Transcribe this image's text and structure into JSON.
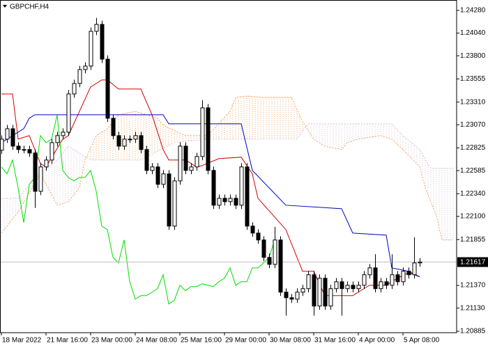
{
  "chart_data": {
    "type": "candlestick",
    "title": "GBPCHF,H4",
    "categories": [
      "18 Mar 2022",
      null,
      null,
      null,
      null,
      null,
      null,
      null,
      "21 Mar 16:00",
      null,
      null,
      null,
      null,
      null,
      null,
      null,
      "23 Mar 00:00",
      null,
      null,
      null,
      null,
      null,
      null,
      null,
      "24 Mar 08:00",
      null,
      null,
      null,
      null,
      null,
      null,
      null,
      "25 Mar 16:00",
      null,
      null,
      null,
      null,
      null,
      null,
      null,
      "29 Mar 00:00",
      null,
      null,
      null,
      null,
      null,
      null,
      null,
      "30 Mar 08:00",
      null,
      null,
      null,
      null,
      null,
      null,
      null,
      "31 Mar 16:00",
      null,
      null,
      null,
      null,
      null,
      null,
      null,
      "4 Apr 00:00",
      null,
      null,
      null,
      null,
      null,
      null,
      null,
      "5 Apr 08:00",
      null,
      null,
      null
    ],
    "open": [
      1.228,
      1.22918,
      1.23028,
      1.22844,
      1.22808,
      1.22808,
      1.22771,
      1.22366,
      1.22624,
      1.22697,
      1.22881,
      1.22955,
      1.22992,
      1.23396,
      1.23507,
      1.23654,
      1.23691,
      1.24059,
      1.24132,
      1.23764,
      1.23139,
      1.22955,
      1.22844,
      1.22918,
      1.22918,
      1.22955,
      1.22808,
      1.22587,
      1.22624,
      1.2244,
      1.2255,
      1.21998,
      1.22476,
      1.22844,
      1.22587,
      1.22624,
      1.22734,
      1.23249,
      1.22587,
      1.22219,
      1.22292,
      1.22256,
      1.22292,
      1.22219,
      1.22624,
      1.21998,
      1.21924,
      1.21851,
      1.21667,
      1.21593,
      1.21851,
      1.21299,
      1.2124,
      1.21225,
      1.21299,
      1.21336,
      1.21483,
      1.21152,
      1.21446,
      1.21152,
      1.21336,
      1.21409,
      1.21336,
      1.21372,
      1.21336,
      1.21372,
      1.21483,
      1.21556,
      1.21336,
      1.21409,
      1.21372,
      1.21483,
      1.21409,
      1.2152,
      1.21483,
      1.21608
    ],
    "high": [
      1.22958,
      1.23068,
      1.23068,
      1.22884,
      1.22848,
      1.22848,
      1.22811,
      1.22664,
      1.22737,
      1.22921,
      1.22995,
      1.23032,
      1.23436,
      1.23547,
      1.23694,
      1.23731,
      1.24099,
      1.242,
      1.24172,
      1.23804,
      1.23179,
      1.22995,
      1.22958,
      1.22958,
      1.22995,
      1.22995,
      1.22848,
      1.22664,
      1.22664,
      1.2259,
      1.2259,
      1.22516,
      1.22884,
      1.22884,
      1.22664,
      1.22774,
      1.2333,
      1.23289,
      1.22627,
      1.22332,
      1.22332,
      1.22332,
      1.22332,
      1.22664,
      1.22664,
      1.22038,
      1.21964,
      1.21891,
      1.21707,
      1.2199,
      1.21891,
      1.21339,
      1.2128,
      1.21339,
      1.21376,
      1.21523,
      1.21523,
      1.21486,
      1.21486,
      1.21376,
      1.21449,
      1.21449,
      1.21412,
      1.21412,
      1.21412,
      1.21523,
      1.21596,
      1.217,
      1.21449,
      1.21449,
      1.217,
      1.21523,
      1.2156,
      1.2156,
      1.2188,
      1.2166
    ],
    "low": [
      1.2276,
      1.22878,
      1.22804,
      1.22768,
      1.22768,
      1.22731,
      1.2219,
      1.22326,
      1.22584,
      1.22657,
      1.22841,
      1.22915,
      1.22952,
      1.23356,
      1.23467,
      1.23614,
      1.23651,
      1.24019,
      1.23724,
      1.23099,
      1.22915,
      1.22804,
      1.22804,
      1.22878,
      1.22878,
      1.22768,
      1.22547,
      1.22547,
      1.224,
      1.224,
      1.21958,
      1.21958,
      1.22436,
      1.22547,
      1.22547,
      1.22584,
      1.22694,
      1.22547,
      1.22179,
      1.22179,
      1.22216,
      1.22216,
      1.22179,
      1.22179,
      1.21958,
      1.21884,
      1.21811,
      1.21627,
      1.21553,
      1.21553,
      1.21259,
      1.2105,
      1.21185,
      1.21185,
      1.21259,
      1.21296,
      1.2105,
      1.21112,
      1.21112,
      1.21112,
      1.21296,
      1.2105,
      1.21296,
      1.21296,
      1.21296,
      1.21332,
      1.21443,
      1.21296,
      1.21296,
      1.21332,
      1.21332,
      1.21369,
      1.21369,
      1.21443,
      1.21443,
      1.21568
    ],
    "close": [
      1.22918,
      1.23028,
      1.22844,
      1.22808,
      1.22808,
      1.22771,
      1.22366,
      1.22624,
      1.22697,
      1.22881,
      1.22955,
      1.22992,
      1.23396,
      1.23507,
      1.23654,
      1.23691,
      1.24059,
      1.24132,
      1.23764,
      1.23139,
      1.22955,
      1.22844,
      1.22918,
      1.22918,
      1.22955,
      1.22808,
      1.22587,
      1.22624,
      1.2244,
      1.2255,
      1.21998,
      1.22476,
      1.22844,
      1.22587,
      1.22624,
      1.22734,
      1.23249,
      1.22587,
      1.22219,
      1.22292,
      1.22256,
      1.22292,
      1.22219,
      1.22624,
      1.21998,
      1.21924,
      1.21851,
      1.21667,
      1.21593,
      1.21851,
      1.21299,
      1.2124,
      1.21225,
      1.21299,
      1.21336,
      1.21483,
      1.21152,
      1.21446,
      1.21152,
      1.21336,
      1.21409,
      1.21336,
      1.21372,
      1.21336,
      1.21372,
      1.21483,
      1.21556,
      1.21336,
      1.21409,
      1.21372,
      1.21483,
      1.21409,
      1.2152,
      1.21483,
      1.21608,
      1.21617
    ],
    "bull_color": "#ffffff",
    "bear_color": "#000000",
    "wick_color": "#000000",
    "lines": [
      {
        "color": "#d00000",
        "x": [
          0,
          2,
          3,
          5,
          7,
          8,
          11,
          12,
          14,
          16,
          18,
          19,
          21,
          25,
          27,
          29,
          30,
          33,
          35,
          36,
          39,
          43,
          45,
          46,
          51,
          53,
          54,
          56,
          58,
          63,
          64,
          66,
          69,
          71,
          73,
          75
        ],
        "values": [
          1.23396,
          1.23396,
          1.22918,
          1.22955,
          1.2266,
          1.22624,
          1.22918,
          1.22955,
          1.23212,
          1.2347,
          1.23544,
          1.23544,
          1.23448,
          1.23448,
          1.23176,
          1.22808,
          1.22697,
          1.22697,
          1.22624,
          1.22638,
          1.22712,
          1.22727,
          1.2255,
          1.22292,
          1.21961,
          1.21667,
          1.2152,
          1.2152,
          1.21262,
          1.21262,
          1.21299,
          1.21372,
          1.21372,
          1.21446,
          1.21505,
          1.21461
        ]
      },
      {
        "color": "#0000c0",
        "x": [
          0,
          4,
          5,
          6,
          29,
          30,
          43,
          45,
          51,
          61,
          63,
          69,
          70,
          73,
          75
        ],
        "values": [
          1.22881,
          1.23028,
          1.23139,
          1.23176,
          1.23176,
          1.2308,
          1.2308,
          1.22587,
          1.22219,
          1.22182,
          1.21924,
          1.21902,
          1.21556,
          1.2152,
          1.21461
        ]
      },
      {
        "color": "#00dd00",
        "values": [
          1.22624,
          1.2255,
          1.22697,
          1.22403,
          1.22035,
          1.2244,
          1.22513,
          1.22955,
          1.22881,
          1.22918,
          1.23176,
          1.22587,
          1.22513,
          1.22476,
          1.22513,
          1.22513,
          1.22587,
          1.22366,
          1.21998,
          1.21961,
          1.21667,
          1.21608,
          1.21851,
          1.21409,
          1.21225,
          1.21262,
          1.21262,
          1.21299,
          1.21336,
          1.21483,
          1.21174,
          1.21211,
          1.21372,
          1.21314,
          1.21358,
          1.21358,
          1.21387,
          1.21372,
          1.21358,
          1.21409,
          1.21446,
          1.21556,
          1.21372,
          1.21409,
          1.21409,
          1.21556,
          1.21556,
          1.21608,
          1.21667,
          1.21851
        ]
      }
    ],
    "cloud": {
      "up_color": "#f4a460",
      "down_color": "#d8bfd8",
      "span_a": {
        "color": "#f4a460",
        "x": [
          0,
          1,
          3,
          7,
          10,
          12,
          14,
          15,
          17,
          19,
          21,
          24,
          28,
          29,
          33,
          37,
          41,
          42,
          44,
          47,
          52,
          54,
          56,
          58,
          61,
          62,
          64,
          68,
          70,
          72,
          75,
          76,
          78,
          79,
          81
        ],
        "values": [
          1.21924,
          1.21998,
          1.22145,
          1.2255,
          1.22219,
          1.22256,
          1.22403,
          1.22697,
          1.22955,
          1.23028,
          1.23176,
          1.23212,
          1.23139,
          1.23065,
          1.22955,
          1.22955,
          1.23212,
          1.2336,
          1.23374,
          1.2336,
          1.2336,
          1.23102,
          1.22918,
          1.22844,
          1.22808,
          1.22881,
          1.22918,
          1.22955,
          1.22918,
          1.22808,
          1.22624,
          1.22403,
          1.22108,
          1.21851,
          1.21851
        ]
      },
      "span_b": {
        "color": "#d8bfd8",
        "x": [
          0,
          3,
          6,
          10,
          12,
          16,
          25,
          31,
          37,
          42,
          53,
          55,
          70,
          72,
          75,
          77,
          81
        ],
        "values": [
          1.22292,
          1.22292,
          1.22513,
          1.22697,
          1.22844,
          1.22697,
          1.22697,
          1.22881,
          1.22918,
          1.22918,
          1.22918,
          1.2308,
          1.2308,
          1.22955,
          1.22808,
          1.22609,
          1.22609
        ]
      }
    },
    "current_price": 1.21617,
    "current_price_color": "#c0c0c0",
    "ylim": [
      1.2087,
      1.2439
    ],
    "yticks": [
      {
        "value": 1.2428,
        "label": "1.24280"
      },
      {
        "value": 1.2404,
        "label": "1.24040"
      },
      {
        "value": 1.238,
        "label": "1.23800"
      },
      {
        "value": 1.23555,
        "label": "1.23555"
      },
      {
        "value": 1.2331,
        "label": "1.23310"
      },
      {
        "value": 1.2307,
        "label": "1.23070"
      },
      {
        "value": 1.22825,
        "label": "1.22825"
      },
      {
        "value": 1.22585,
        "label": "1.22585"
      },
      {
        "value": 1.2234,
        "label": "1.22340"
      },
      {
        "value": 1.221,
        "label": "1.22100"
      },
      {
        "value": 1.21855,
        "label": "1.21855"
      },
      {
        "value": 1.2137,
        "label": "1.21370"
      },
      {
        "value": 1.2113,
        "label": "1.21130"
      },
      {
        "value": 1.20885,
        "label": "1.20885"
      }
    ],
    "grid": false
  }
}
